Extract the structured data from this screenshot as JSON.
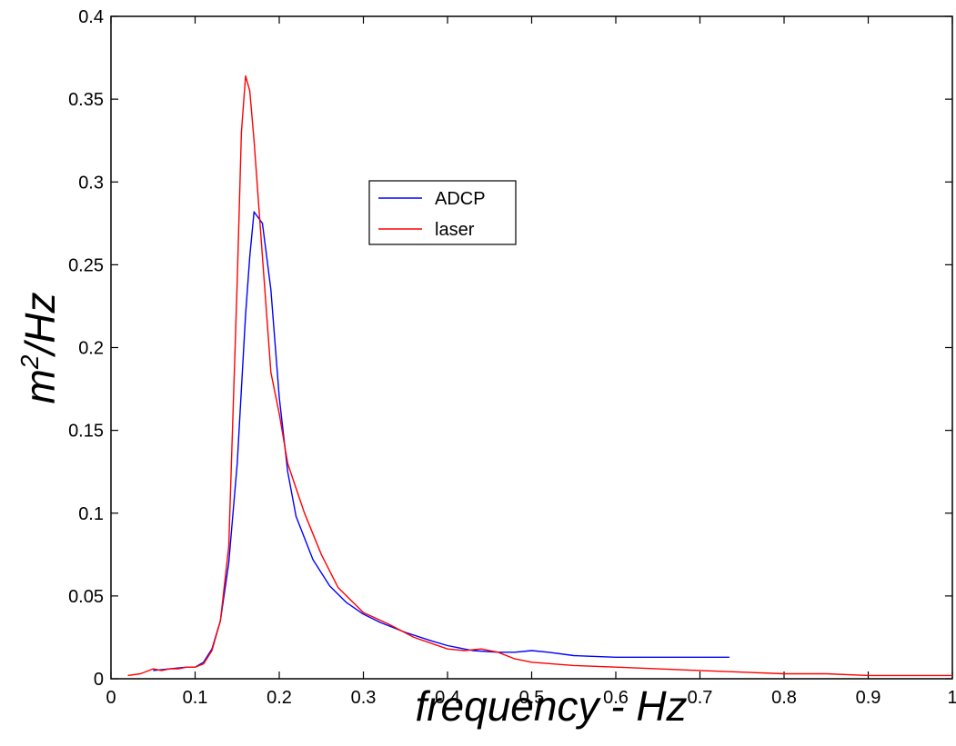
{
  "chart_data": {
    "type": "line",
    "title": "",
    "xlabel": "frequency - Hz",
    "ylabel_base": "m",
    "ylabel_sup": "2",
    "ylabel_rest": "/Hz",
    "xlim": [
      0,
      1
    ],
    "ylim": [
      0,
      0.4
    ],
    "xticks": [
      0,
      0.1,
      0.2,
      0.3,
      0.4,
      0.5,
      0.6,
      0.7,
      0.8,
      0.9,
      1
    ],
    "xtick_labels": [
      "0",
      "0.1",
      "0.2",
      "0.3",
      "0.4",
      "0.5",
      "0.6",
      "0.7",
      "0.8",
      "0.9",
      "1"
    ],
    "yticks": [
      0,
      0.05,
      0.1,
      0.15,
      0.2,
      0.25,
      0.3,
      0.35,
      0.4
    ],
    "ytick_labels": [
      "0",
      "0.05",
      "0.1",
      "0.15",
      "0.2",
      "0.25",
      "0.3",
      "0.35",
      "0.4"
    ],
    "grid": false,
    "legend_position": "upper-middle",
    "series": [
      {
        "name": "ADCP",
        "color": "#0000ff",
        "x": [
          0.05,
          0.07,
          0.09,
          0.1,
          0.11,
          0.12,
          0.13,
          0.14,
          0.15,
          0.16,
          0.165,
          0.17,
          0.18,
          0.19,
          0.2,
          0.21,
          0.22,
          0.24,
          0.26,
          0.28,
          0.3,
          0.32,
          0.35,
          0.38,
          0.4,
          0.43,
          0.46,
          0.48,
          0.5,
          0.52,
          0.55,
          0.6,
          0.65,
          0.7,
          0.735
        ],
        "y": [
          0.005,
          0.006,
          0.007,
          0.007,
          0.01,
          0.018,
          0.035,
          0.07,
          0.13,
          0.22,
          0.255,
          0.282,
          0.275,
          0.235,
          0.17,
          0.125,
          0.098,
          0.072,
          0.056,
          0.046,
          0.039,
          0.034,
          0.028,
          0.023,
          0.02,
          0.017,
          0.016,
          0.016,
          0.017,
          0.016,
          0.014,
          0.013,
          0.013,
          0.013,
          0.013
        ]
      },
      {
        "name": "laser",
        "color": "#ff0000",
        "x": [
          0.02,
          0.035,
          0.05,
          0.06,
          0.07,
          0.08,
          0.09,
          0.1,
          0.11,
          0.12,
          0.13,
          0.14,
          0.15,
          0.155,
          0.16,
          0.165,
          0.17,
          0.18,
          0.19,
          0.2,
          0.21,
          0.22,
          0.23,
          0.25,
          0.27,
          0.3,
          0.33,
          0.36,
          0.4,
          0.42,
          0.44,
          0.46,
          0.48,
          0.5,
          0.55,
          0.6,
          0.65,
          0.7,
          0.75,
          0.8,
          0.85,
          0.9,
          0.95,
          1.0
        ],
        "y": [
          0.002,
          0.003,
          0.006,
          0.005,
          0.006,
          0.006,
          0.007,
          0.007,
          0.009,
          0.017,
          0.035,
          0.08,
          0.24,
          0.33,
          0.364,
          0.355,
          0.325,
          0.255,
          0.185,
          0.16,
          0.13,
          0.115,
          0.1,
          0.075,
          0.055,
          0.04,
          0.033,
          0.025,
          0.018,
          0.017,
          0.018,
          0.016,
          0.012,
          0.01,
          0.008,
          0.007,
          0.006,
          0.005,
          0.004,
          0.003,
          0.003,
          0.002,
          0.002,
          0.002
        ]
      }
    ]
  }
}
